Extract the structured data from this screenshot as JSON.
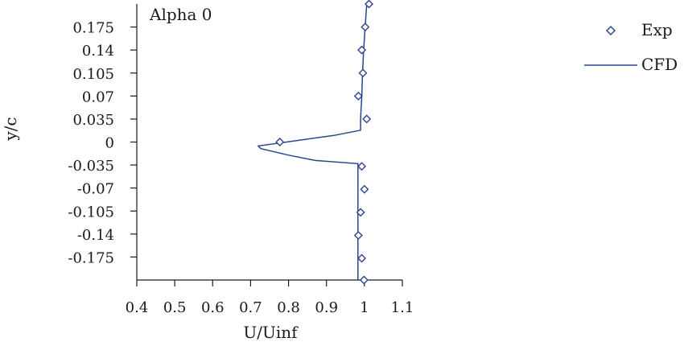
{
  "chart_data": {
    "type": "line",
    "annotation": "Alpha 0",
    "xlabel": "U/Uinf",
    "ylabel": "y/c",
    "xlim": [
      0.4,
      1.1
    ],
    "ylim": [
      -0.21,
      0.21
    ],
    "x_ticks": [
      "0.4",
      "0.5",
      "0.6",
      "0.7",
      "0.8",
      "0.9",
      "1",
      "1.1"
    ],
    "x_tick_values": [
      0.4,
      0.5,
      0.6,
      0.7,
      0.8,
      0.9,
      1.0,
      1.1
    ],
    "y_ticks": [
      "0.175",
      "0.14",
      "0.105",
      "0.07",
      "0.035",
      "0",
      "-0.035",
      "-0.07",
      "-0.105",
      "-0.14",
      "-0.175"
    ],
    "y_tick_values": [
      0.175,
      0.14,
      0.105,
      0.07,
      0.035,
      0,
      -0.035,
      -0.07,
      -0.105,
      -0.14,
      -0.175
    ],
    "grid": false,
    "legend_position": "top-right",
    "series": [
      {
        "name": "Exp",
        "kind": "scatter",
        "marker": "diamond",
        "color": "#2b4590",
        "x": [
          1.012,
          1.002,
          0.993,
          0.996,
          0.984,
          1.006,
          0.777,
          0.993,
          1.0,
          0.99,
          0.984,
          0.993,
          0.999
        ],
        "y": [
          0.21,
          0.175,
          0.14,
          0.105,
          0.07,
          0.035,
          0.0,
          -0.037,
          -0.072,
          -0.107,
          -0.142,
          -0.177,
          -0.21
        ]
      },
      {
        "name": "CFD",
        "kind": "line",
        "color": "#2b4590",
        "x": [
          1.006,
          1.002,
          0.998,
          0.995,
          0.993,
          0.99,
          0.99,
          0.92,
          0.72,
          0.727,
          0.8,
          0.87,
          0.983,
          0.983,
          0.983
        ],
        "y": [
          0.21,
          0.175,
          0.14,
          0.105,
          0.07,
          0.035,
          0.018,
          0.01,
          -0.006,
          -0.01,
          -0.02,
          -0.028,
          -0.033,
          -0.1,
          -0.21
        ]
      }
    ]
  }
}
